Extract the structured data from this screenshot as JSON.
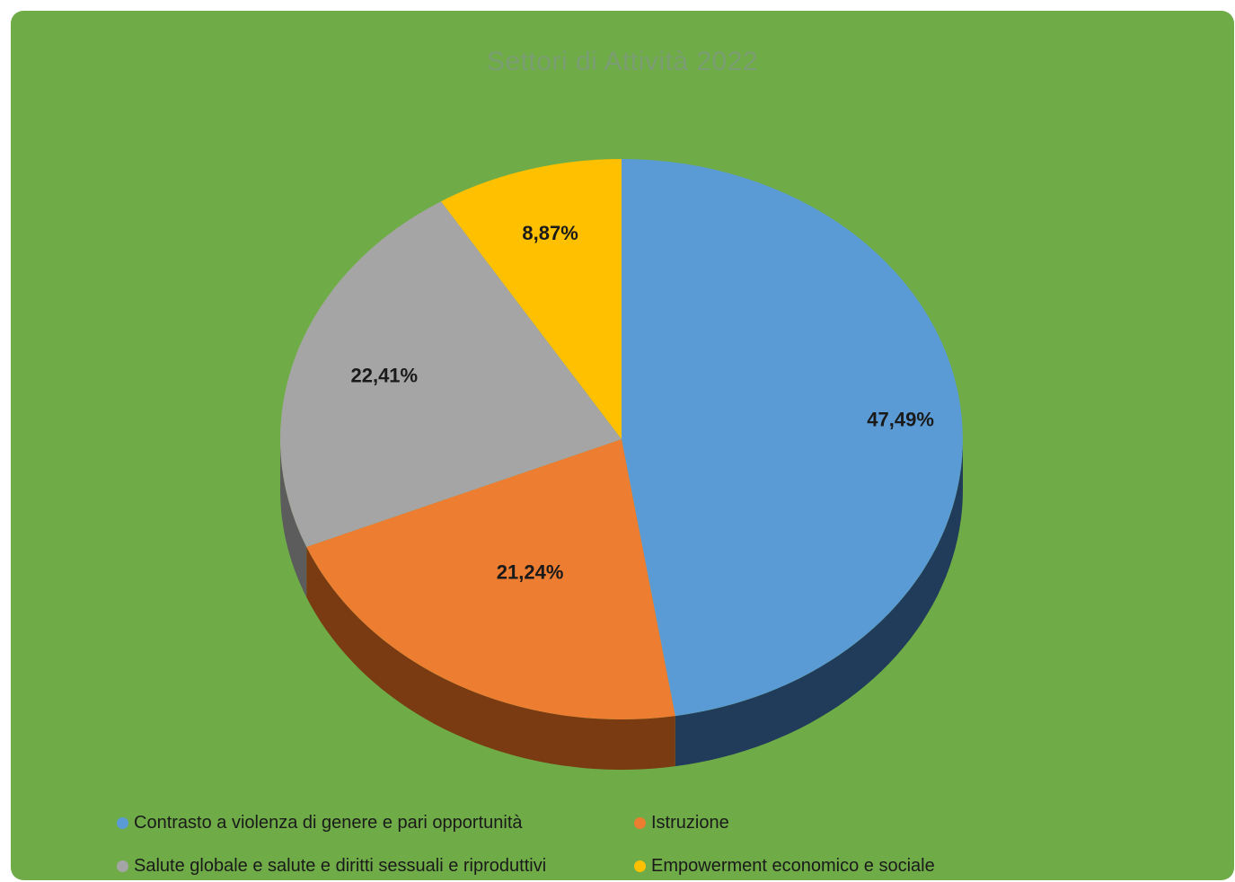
{
  "colors": {
    "background": "#6fac47",
    "title": "#7b9d73"
  },
  "chart_data": {
    "type": "pie",
    "title": "Settori di Attività 2022",
    "legend_position": "bottom",
    "three_d": true,
    "slices": [
      {
        "label": "Contrasto a violenza di genere e pari opportunità",
        "value": 47.49,
        "value_label": "47,49%",
        "color": "#5b9bd5",
        "side_color": "#213c5a"
      },
      {
        "label": "Istruzione",
        "value": 21.24,
        "value_label": "21,24%",
        "color": "#ed7d31",
        "side_color": "#7a3b12"
      },
      {
        "label": "Salute globale e salute e diritti sessuali e riproduttivi",
        "value": 22.41,
        "value_label": "22,41%",
        "color": "#a5a5a5",
        "side_color": "#5c5c5c"
      },
      {
        "label": "Empowerment economico e sociale",
        "value": 8.87,
        "value_label": "8,87%",
        "color": "#ffc000",
        "side_color": "#8a6a00"
      }
    ]
  }
}
